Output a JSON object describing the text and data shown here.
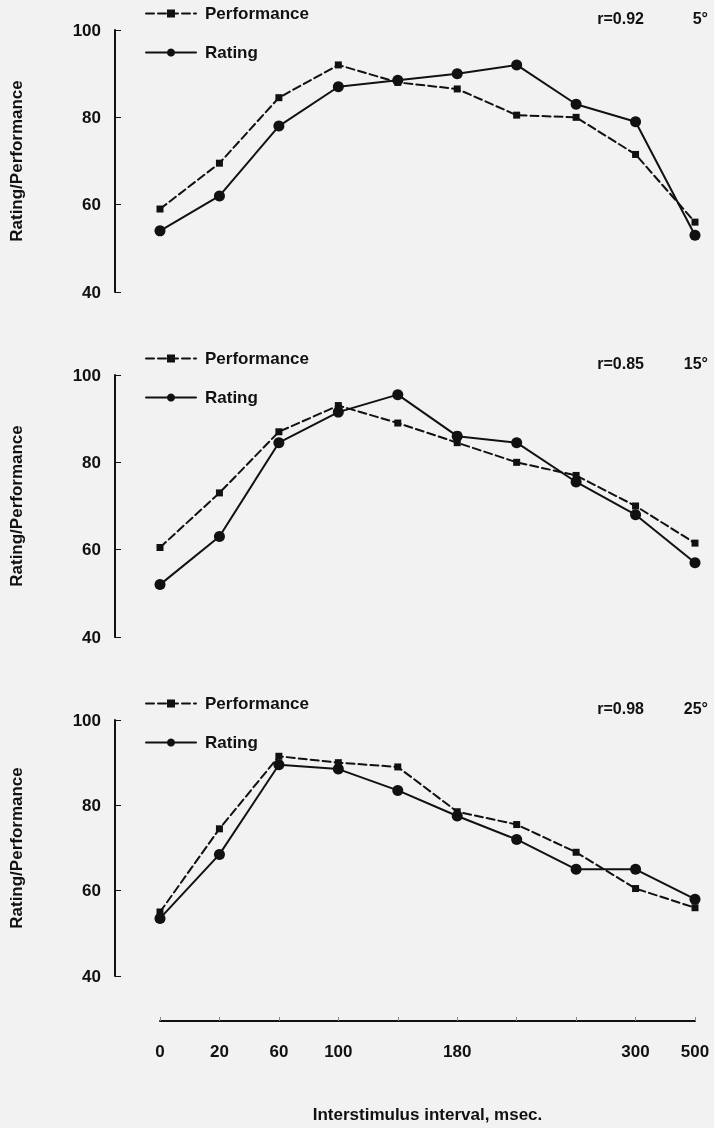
{
  "chart_data": [
    {
      "type": "line",
      "ylabel": "Rating/Performance",
      "categories": [
        "0",
        "20",
        "60",
        "100",
        null,
        "180",
        null,
        null,
        "300",
        "500"
      ],
      "ylim": [
        40,
        100
      ],
      "yticks": [
        40,
        60,
        80,
        100
      ],
      "tick_labels": "y",
      "legend": "top left",
      "grid": false,
      "annotations": [
        "r=0.92",
        "5°"
      ],
      "series": [
        {
          "name": "Performance",
          "color": "#111111",
          "marker": "square",
          "line_style": "dashed",
          "values": [
            59,
            69.5,
            84.5,
            92,
            88,
            86.5,
            80.5,
            80,
            71.5,
            56
          ]
        },
        {
          "name": "Rating",
          "color": "#111111",
          "marker": "circle",
          "line_style": "solid",
          "values": [
            54,
            62,
            78,
            87,
            88.5,
            90,
            92,
            83,
            79,
            53
          ]
        }
      ]
    },
    {
      "type": "line",
      "ylabel": "Rating/Performance",
      "categories": [
        "0",
        "20",
        "60",
        "100",
        null,
        "180",
        null,
        null,
        "300",
        "500"
      ],
      "ylim": [
        40,
        100
      ],
      "yticks": [
        40,
        60,
        80,
        100
      ],
      "tick_labels": "y",
      "legend": "top left",
      "grid": false,
      "annotations": [
        "r=0.85",
        "15°"
      ],
      "series": [
        {
          "name": "Performance",
          "color": "#111111",
          "marker": "square",
          "line_style": "dashed",
          "values": [
            60.5,
            73,
            87,
            93,
            89,
            84.5,
            80,
            77,
            70,
            61.5
          ]
        },
        {
          "name": "Rating",
          "color": "#111111",
          "marker": "circle",
          "line_style": "solid",
          "values": [
            52,
            63,
            84.5,
            91.5,
            95.5,
            86,
            84.5,
            75.5,
            68,
            57
          ]
        }
      ]
    },
    {
      "type": "line",
      "ylabel": "Rating/Performance",
      "xlabel": "Interstimulus interval, msec.",
      "categories": [
        "0",
        "20",
        "60",
        "100",
        null,
        "180",
        null,
        null,
        "300",
        "500"
      ],
      "ylim": [
        40,
        100
      ],
      "yticks": [
        40,
        60,
        80,
        100
      ],
      "legend": "top left",
      "grid": false,
      "annotations": [
        "r=0.98",
        "25°"
      ],
      "series": [
        {
          "name": "Performance",
          "color": "#111111",
          "marker": "square",
          "line_style": "dashed",
          "values": [
            55,
            74.5,
            91.5,
            90,
            89,
            78.5,
            75.5,
            69,
            60.5,
            56
          ]
        },
        {
          "name": "Rating",
          "color": "#111111",
          "marker": "circle",
          "line_style": "solid",
          "values": [
            53.5,
            68.5,
            89.5,
            88.5,
            83.5,
            77.5,
            72,
            65,
            65,
            58
          ]
        }
      ]
    }
  ]
}
